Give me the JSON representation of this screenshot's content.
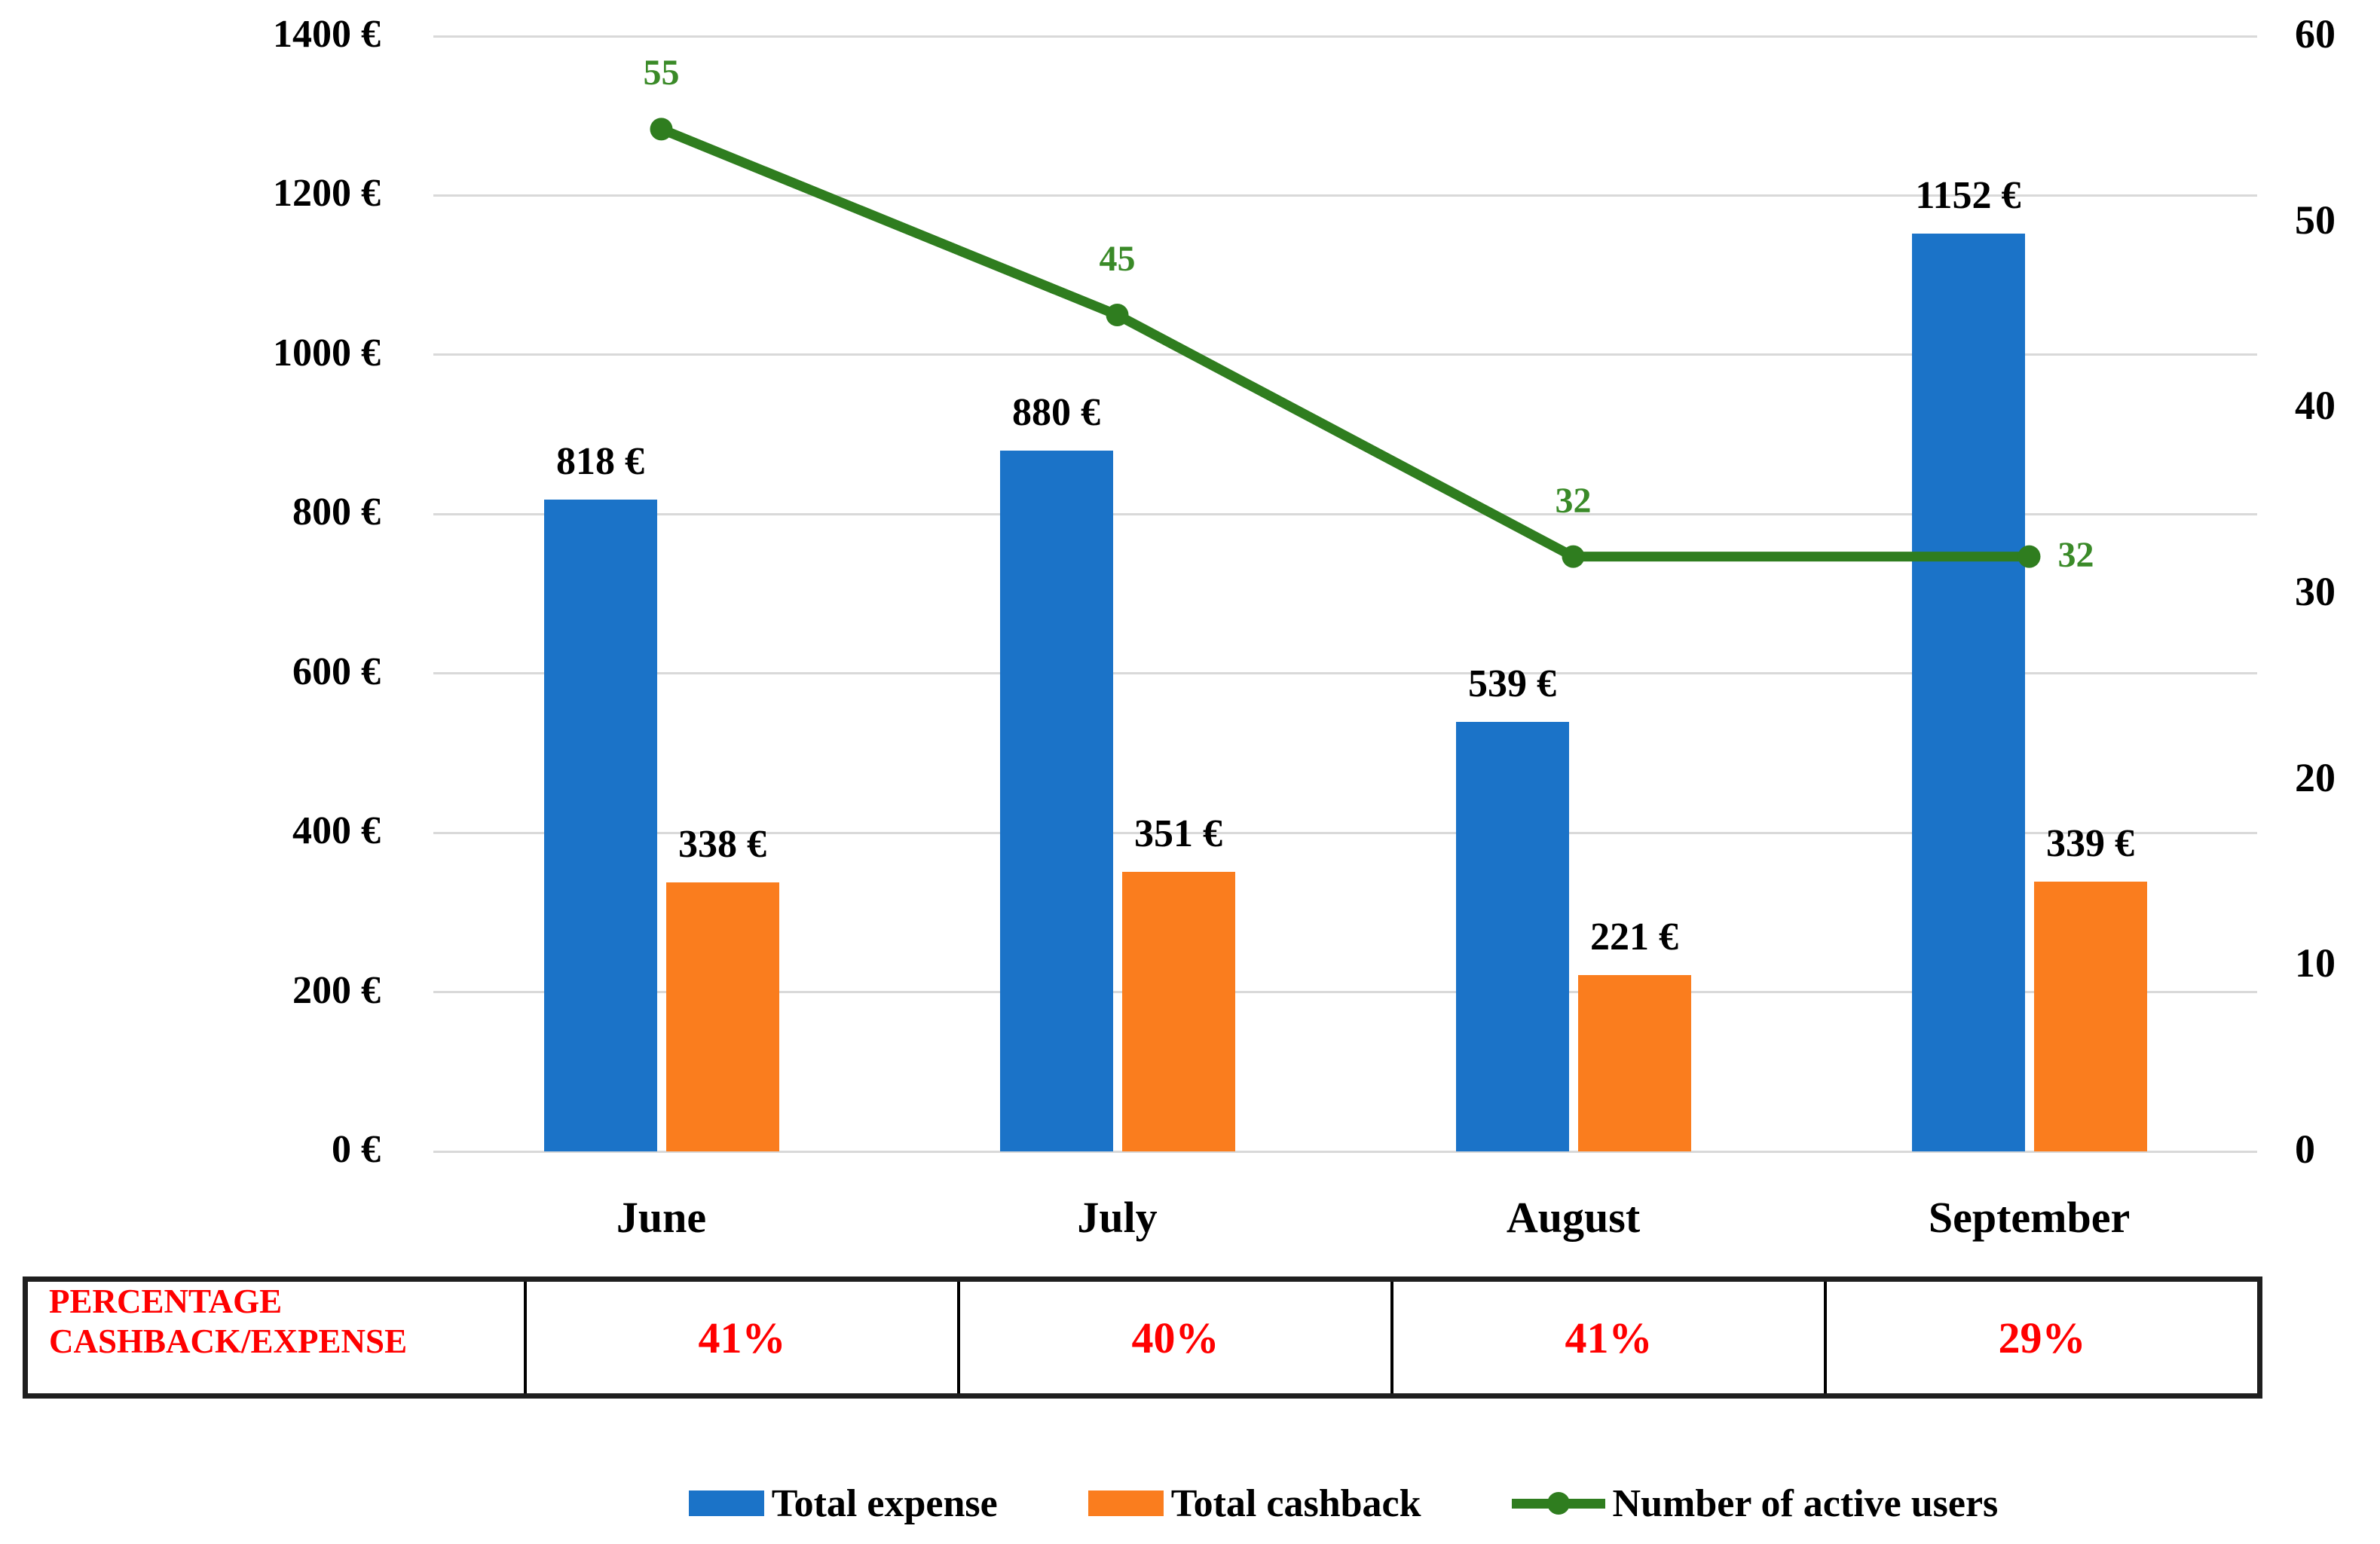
{
  "chart_data": {
    "type": "combo",
    "categories": [
      "June",
      "July",
      "August",
      "September"
    ],
    "series": [
      {
        "name": "Total expense",
        "type": "bar",
        "axis": "left",
        "values": [
          818,
          880,
          539,
          1152
        ],
        "unit": "€",
        "color": "#1b73c8"
      },
      {
        "name": "Total cashback",
        "type": "bar",
        "axis": "left",
        "values": [
          338,
          351,
          221,
          339
        ],
        "unit": "€",
        "color": "#fa7d1e"
      },
      {
        "name": "Number of active users",
        "type": "line",
        "axis": "right",
        "values": [
          55,
          45,
          32,
          32
        ],
        "color": "#2f7d1f",
        "label_color": "#3a8a28",
        "label_placement": [
          "above",
          "above",
          "above",
          "right"
        ]
      }
    ],
    "left_axis": {
      "min": 0,
      "max": 1400,
      "step": 200,
      "unit": "€"
    },
    "right_axis": {
      "min": 0,
      "max": 60,
      "step": 10
    },
    "grid": true,
    "gridline_color": "#d9d9d9",
    "legend_position": "bottom"
  },
  "table": {
    "header_line1": "PERCENTAGE",
    "header_line2": "CASHBACK/EXPENSE",
    "values": [
      "41%",
      "40%",
      "41%",
      "29%"
    ],
    "text_color": "#ff0000"
  },
  "legend": {
    "items": [
      {
        "label": "Total expense",
        "marker": "square"
      },
      {
        "label": "Total cashback",
        "marker": "square"
      },
      {
        "label": "Number of active users",
        "marker": "line-dot"
      }
    ]
  }
}
